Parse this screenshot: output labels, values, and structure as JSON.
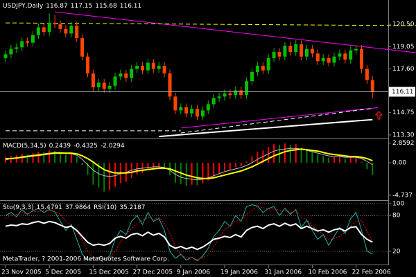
{
  "chart_data": [
    {
      "type": "candlestick",
      "title": "USDJPY,Daily",
      "categories": [
        "23 Nov 2005",
        null,
        null,
        null,
        null,
        null,
        null,
        null,
        "5 Dec 2005",
        null,
        null,
        null,
        null,
        null,
        null,
        null,
        "15 Dec 2005",
        null,
        null,
        null,
        null,
        null,
        null,
        null,
        "27 Dec 2005",
        null,
        null,
        null,
        null,
        null,
        null,
        null,
        "9 Jan 2006",
        null,
        null,
        null,
        null,
        null,
        null,
        null,
        "19 Jan 2006",
        null,
        null,
        null,
        null,
        null,
        null,
        null,
        "31 Jan 2006",
        null,
        null,
        null,
        null,
        null,
        null,
        null,
        "10 Feb 2006",
        null,
        null,
        null,
        null,
        null,
        null,
        null,
        "22 Feb 2006",
        null,
        null,
        null
      ],
      "open": [
        118.3,
        118.55,
        118.9,
        119.0,
        119.4,
        119.3,
        119.8,
        120.3,
        120.0,
        120.6,
        120.5,
        120.2,
        119.9,
        120.4,
        119.6,
        118.4,
        117.3,
        116.4,
        116.7,
        116.3,
        116.5,
        117.1,
        117.3,
        117.0,
        117.6,
        117.8,
        117.5,
        118.0,
        117.6,
        117.8,
        117.3,
        115.8,
        114.9,
        115.1,
        114.7,
        115.0,
        114.5,
        114.9,
        115.3,
        115.7,
        115.8,
        116.0,
        115.9,
        116.2,
        115.9,
        116.8,
        117.4,
        117.8,
        117.5,
        118.3,
        118.7,
        118.4,
        119.1,
        118.7,
        119.2,
        118.4,
        118.9,
        118.6,
        118.1,
        118.3,
        118.0,
        118.4,
        118.6,
        118.2,
        118.8,
        118.9,
        117.6,
        116.87
      ],
      "high": [
        118.8,
        119.15,
        119.25,
        119.65,
        119.65,
        120.05,
        120.55,
        120.55,
        121.2,
        121.1,
        120.75,
        120.45,
        120.65,
        120.65,
        119.85,
        118.65,
        117.55,
        116.95,
        116.95,
        116.75,
        117.35,
        117.55,
        117.55,
        117.85,
        118.05,
        118.05,
        118.25,
        118.25,
        118.05,
        118.05,
        117.55,
        116.05,
        115.35,
        115.35,
        115.25,
        115.25,
        115.15,
        115.55,
        115.95,
        116.05,
        116.25,
        116.25,
        116.45,
        116.45,
        117.05,
        117.65,
        118.05,
        118.05,
        118.55,
        118.95,
        118.95,
        119.35,
        119.35,
        119.45,
        119.45,
        119.15,
        119.15,
        118.85,
        118.55,
        118.55,
        118.65,
        118.85,
        118.85,
        119.05,
        119.15,
        119.15,
        117.85,
        117.15
      ],
      "low": [
        118.05,
        118.3,
        118.65,
        118.75,
        119.05,
        119.05,
        119.55,
        119.75,
        119.75,
        120.25,
        119.95,
        119.65,
        119.65,
        119.35,
        118.15,
        117.05,
        116.15,
        116.15,
        116.05,
        116.05,
        116.25,
        116.85,
        116.75,
        116.75,
        117.35,
        117.25,
        117.25,
        117.35,
        117.35,
        117.05,
        115.55,
        114.65,
        114.65,
        114.45,
        114.45,
        114.25,
        114.25,
        114.65,
        115.05,
        115.45,
        115.55,
        115.65,
        115.65,
        115.65,
        115.65,
        116.55,
        117.15,
        117.25,
        117.25,
        118.05,
        118.15,
        118.15,
        118.45,
        118.45,
        118.15,
        118.15,
        118.35,
        117.85,
        117.85,
        117.75,
        117.75,
        118.15,
        117.95,
        117.95,
        118.55,
        117.35,
        116.62,
        115.68
      ],
      "close": [
        118.55,
        118.9,
        119.0,
        119.4,
        119.3,
        119.8,
        120.3,
        120.0,
        120.6,
        120.5,
        120.2,
        119.9,
        120.4,
        119.6,
        118.4,
        117.3,
        116.4,
        116.7,
        116.3,
        116.5,
        117.1,
        117.3,
        117.0,
        117.6,
        117.8,
        117.5,
        118.0,
        117.6,
        117.8,
        117.3,
        115.8,
        114.9,
        115.1,
        114.7,
        115.0,
        114.5,
        114.9,
        115.3,
        115.7,
        115.8,
        116.0,
        115.9,
        116.2,
        115.9,
        116.8,
        117.4,
        117.8,
        117.5,
        118.3,
        118.7,
        118.4,
        119.1,
        118.7,
        119.2,
        118.4,
        118.9,
        118.6,
        118.1,
        118.3,
        118.0,
        118.4,
        118.6,
        118.2,
        118.8,
        118.9,
        117.6,
        116.87,
        116.11
      ],
      "up_color": "#00c000",
      "down_color": "#ff4500",
      "ylim": [
        113.16,
        121.99
      ],
      "yticks": [
        {
          "value": 120.5,
          "label": "120.50"
        },
        119.05,
        {
          "value": 117.6,
          "label": "117.60"
        },
        114.75,
        {
          "value": 113.3,
          "label": "113.30"
        }
      ],
      "lines": [
        {
          "color": "#ff00ff",
          "dashed": false,
          "from": [
            9,
            121.31
          ],
          "to": [
            75,
            118.65
          ]
        },
        {
          "color": "#ff00ff",
          "dashed": false,
          "from": [
            32,
            113.75
          ],
          "to": [
            68,
            115.08
          ]
        },
        {
          "color": "#ffff00",
          "dashed": true,
          "from": [
            0,
            120.59
          ],
          "to": [
            75,
            120.41
          ]
        },
        {
          "color": "#ffffff",
          "dashed": true,
          "from": [
            0,
            113.57
          ],
          "to": [
            32,
            113.57
          ]
        },
        {
          "color": "#ffffff",
          "dashed": true,
          "from": [
            32,
            113.43
          ],
          "to": [
            67,
            115.03
          ]
        },
        {
          "color": "#ffffff",
          "dashed": false,
          "from": [
            28,
            113.2
          ],
          "to": [
            67,
            114.3
          ]
        }
      ]
    },
    {
      "type": "macd",
      "title": "MACD(5,34,5)",
      "readout": [
        0.2439,
        -0.4325,
        -2.0294
      ],
      "histogram": {
        "up_color": "#ff0000",
        "down_color": "#008000",
        "values": [
          0.8,
          1.0,
          1.1,
          1.3,
          1.2,
          1.4,
          1.6,
          1.5,
          1.8,
          1.7,
          1.5,
          1.2,
          1.3,
          0.8,
          -0.3,
          -1.8,
          -3.2,
          -3.6,
          -4.2,
          -4.0,
          -3.5,
          -3.0,
          -2.8,
          -2.2,
          -1.7,
          -1.5,
          -1.0,
          -0.9,
          -0.6,
          -0.8,
          -1.8,
          -2.9,
          -3.1,
          -3.4,
          -3.2,
          -3.3,
          -3.0,
          -2.6,
          -2.0,
          -1.6,
          -1.2,
          -1.0,
          -0.6,
          -0.5,
          0.2,
          0.9,
          1.6,
          1.8,
          2.3,
          2.7,
          2.6,
          2.8,
          2.6,
          2.7,
          2.1,
          2.0,
          1.7,
          1.2,
          1.0,
          0.7,
          0.8,
          0.9,
          0.6,
          0.8,
          0.9,
          0.1,
          -0.9,
          -1.8
        ]
      },
      "series": [
        {
          "color": "#c0c0c0",
          "style": "solid",
          "values": [
            0.4,
            0.6,
            0.7,
            0.9,
            1.0,
            1.1,
            1.2,
            1.3,
            1.4,
            1.5,
            1.5,
            1.4,
            1.3,
            1.1,
            0.5,
            -0.3,
            -1.1,
            -1.6,
            -1.9,
            -2.0,
            -1.9,
            -1.6,
            -1.4,
            -1.1,
            -0.9,
            -0.8,
            -0.7,
            -0.6,
            -0.6,
            -0.7,
            -1.1,
            -1.7,
            -2.1,
            -2.3,
            -2.4,
            -2.5,
            -2.4,
            -2.2,
            -1.9,
            -1.6,
            -1.3,
            -1.1,
            -0.9,
            -0.7,
            -0.4,
            0.0,
            0.5,
            0.9,
            1.3,
            1.7,
            1.9,
            2.0,
            2.1,
            2.1,
            2.0,
            1.8,
            1.6,
            1.4,
            1.2,
            1.0,
            0.9,
            0.9,
            0.8,
            0.8,
            0.8,
            0.6,
            0.2,
            -0.3
          ]
        },
        {
          "color": "#ffff00",
          "style": "thick",
          "values": [
            0.6,
            0.6,
            0.7,
            0.8,
            0.9,
            1.0,
            1.1,
            1.2,
            1.3,
            1.4,
            1.4,
            1.4,
            1.4,
            1.3,
            1.0,
            0.6,
            0.1,
            -0.5,
            -1.0,
            -1.3,
            -1.5,
            -1.5,
            -1.5,
            -1.4,
            -1.2,
            -1.1,
            -1.0,
            -0.9,
            -0.8,
            -0.8,
            -0.9,
            -1.2,
            -1.5,
            -1.8,
            -2.0,
            -2.2,
            -2.3,
            -2.3,
            -2.2,
            -2.0,
            -1.8,
            -1.6,
            -1.4,
            -1.2,
            -0.9,
            -0.6,
            -0.2,
            0.2,
            0.6,
            1.0,
            1.3,
            1.6,
            1.8,
            1.9,
            2.0,
            1.9,
            1.8,
            1.7,
            1.5,
            1.3,
            1.2,
            1.1,
            1.0,
            0.9,
            0.9,
            0.8,
            0.6,
            0.3
          ]
        }
      ],
      "ylim": [
        -5.05,
        3.23
      ],
      "yticks": [
        2.8592,
        {
          "value": 0,
          "label": "0.00"
        },
        -4.737
      ]
    },
    {
      "type": "oscillator",
      "title": "Sto(9,3,3)",
      "rsi_title": "RSI(10)",
      "note": "MetaTrader, ? 2001-2006 MetaQuotes Software Corp.",
      "series": [
        {
          "color": "#20b2aa",
          "style": "solid",
          "values": [
            80,
            85,
            78,
            90,
            82,
            88,
            92,
            85,
            90,
            86,
            70,
            55,
            65,
            40,
            15,
            5,
            8,
            10,
            6,
            12,
            40,
            55,
            48,
            70,
            80,
            65,
            85,
            70,
            75,
            55,
            20,
            8,
            15,
            5,
            10,
            4,
            12,
            25,
            45,
            55,
            70,
            62,
            80,
            70,
            95,
            98,
            96,
            85,
            92,
            95,
            80,
            92,
            82,
            90,
            60,
            72,
            55,
            40,
            48,
            30,
            45,
            60,
            50,
            75,
            85,
            55,
            20,
            15.4791
          ]
        },
        {
          "color": "#ff0000",
          "style": "dotted",
          "values": [
            75,
            80,
            82,
            84,
            83,
            87,
            87,
            88,
            89,
            87,
            82,
            70,
            63,
            53,
            40,
            20,
            9,
            8,
            8,
            9,
            20,
            36,
            48,
            58,
            66,
            72,
            77,
            73,
            77,
            67,
            50,
            28,
            14,
            9,
            10,
            6,
            9,
            14,
            27,
            42,
            57,
            62,
            71,
            71,
            82,
            88,
            96,
            93,
            91,
            91,
            89,
            89,
            85,
            88,
            77,
            74,
            62,
            56,
            48,
            39,
            41,
            45,
            52,
            62,
            70,
            72,
            53,
            37.9864
          ]
        },
        {
          "color": "#ffffff",
          "style": "thick",
          "values": [
            62,
            64,
            63,
            66,
            65,
            68,
            70,
            67,
            70,
            68,
            64,
            60,
            62,
            55,
            45,
            35,
            30,
            32,
            30,
            33,
            42,
            45,
            42,
            48,
            50,
            46,
            52,
            47,
            50,
            44,
            30,
            25,
            28,
            24,
            27,
            23,
            27,
            33,
            40,
            42,
            45,
            43,
            48,
            44,
            55,
            60,
            62,
            58,
            64,
            66,
            62,
            67,
            63,
            66,
            58,
            62,
            58,
            54,
            56,
            52,
            56,
            58,
            54,
            60,
            61,
            48,
            40,
            35.2187
          ]
        }
      ],
      "ylim": [
        0,
        100
      ],
      "yticks": [
        100,
        80,
        20
      ],
      "grid": true
    }
  ]
}
